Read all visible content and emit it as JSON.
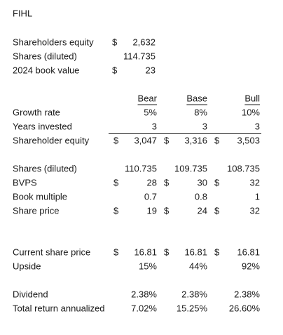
{
  "title": "FIHL",
  "summary": {
    "rows": [
      {
        "label": "Shareholders equity",
        "currency": "$",
        "value": "2,632"
      },
      {
        "label": "Shares (diluted)",
        "value": "114.735"
      },
      {
        "label": "2024 book value",
        "currency": "$",
        "value": "23"
      }
    ]
  },
  "scenarios": {
    "columns": [
      "Bear",
      "Base",
      "Bull"
    ],
    "groups": [
      [
        {
          "label": "Growth rate",
          "cells": [
            {
              "value": "5%"
            },
            {
              "value": "8%"
            },
            {
              "value": "10%"
            }
          ]
        },
        {
          "label": "Years invested",
          "cells": [
            {
              "value": "3"
            },
            {
              "value": "3"
            },
            {
              "value": "3"
            }
          ]
        },
        {
          "label": "Shareholder equity",
          "cells": [
            {
              "currency": "$",
              "value": "3,047"
            },
            {
              "currency": "$",
              "value": "3,316"
            },
            {
              "currency": "$",
              "value": "3,503"
            }
          ]
        }
      ],
      [
        {
          "label": "Shares (diluted)",
          "cells": [
            {
              "value": "110.735"
            },
            {
              "value": "109.735"
            },
            {
              "value": "108.735"
            }
          ]
        },
        {
          "label": "BVPS",
          "cells": [
            {
              "currency": "$",
              "value": "28"
            },
            {
              "currency": "$",
              "value": "30"
            },
            {
              "currency": "$",
              "value": "32"
            }
          ]
        },
        {
          "label": "Book multiple",
          "cells": [
            {
              "value": "0.7"
            },
            {
              "value": "0.8"
            },
            {
              "value": "1"
            }
          ]
        },
        {
          "label": "Share price",
          "cells": [
            {
              "currency": "$",
              "value": "19"
            },
            {
              "currency": "$",
              "value": "24"
            },
            {
              "currency": "$",
              "value": "32"
            }
          ]
        }
      ],
      [
        {
          "label": "Current share price",
          "cells": [
            {
              "currency": "$",
              "value": "16.81"
            },
            {
              "currency": "$",
              "value": "16.81"
            },
            {
              "currency": "$",
              "value": "16.81"
            }
          ]
        },
        {
          "label": "Upside",
          "cells": [
            {
              "value": "15%"
            },
            {
              "value": "44%"
            },
            {
              "value": "92%"
            }
          ]
        }
      ],
      [
        {
          "label": "Dividend",
          "cells": [
            {
              "value": "2.38%"
            },
            {
              "value": "2.38%"
            },
            {
              "value": "2.38%"
            }
          ]
        },
        {
          "label": "Total return annualized",
          "cells": [
            {
              "value": "7.02%"
            },
            {
              "value": "15.25%"
            },
            {
              "value": "26.60%"
            }
          ]
        }
      ]
    ]
  }
}
